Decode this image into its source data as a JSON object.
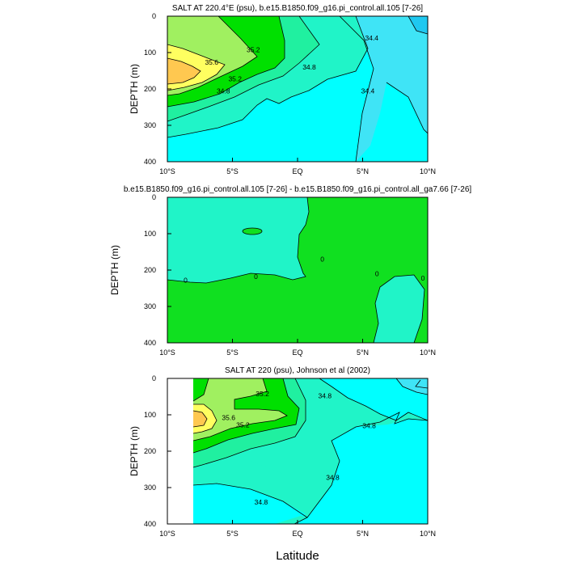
{
  "chart_data": [
    {
      "type": "heatmap",
      "title": "SALT AT 220.4°E (psu), b.e15.B1850.f09_g16.pi_control.all.105 [7-26]",
      "ylabel": "DEPTH (m)",
      "xlabel": "",
      "x_ticks": [
        -10,
        -5,
        0,
        5,
        10
      ],
      "x_tick_labels": [
        "10°S",
        "5°S",
        "EQ",
        "5°N",
        "10°N"
      ],
      "y_ticks": [
        0,
        100,
        200,
        300,
        400
      ],
      "y_tick_labels": [
        "0",
        "100",
        "200",
        "300",
        "400"
      ],
      "xlim": [
        -10,
        10
      ],
      "ylim": [
        400,
        0
      ],
      "colors": {
        "34.2": "#1fc8f0",
        "34.4": "#3fe4f6",
        "34.6": "#00ffff",
        "34.8": "#20f4c8",
        "35.0": "#20f0a0",
        "35.2": "#00e000",
        "35.4": "#a0f060",
        "35.6": "#ffff60",
        "35.8": "#ffc850"
      },
      "contour_labels": [
        {
          "text": "35.2",
          "x": -3.4,
          "y": 92
        },
        {
          "text": "35.6",
          "x": -6.6,
          "y": 127
        },
        {
          "text": "35.2",
          "x": -4.8,
          "y": 172
        },
        {
          "text": "34.8",
          "x": -5.7,
          "y": 205
        },
        {
          "text": "34.8",
          "x": 0.9,
          "y": 140
        },
        {
          "text": "34.4",
          "x": 5.7,
          "y": 60
        },
        {
          "text": "34.4",
          "x": 5.4,
          "y": 205
        }
      ]
    },
    {
      "type": "heatmap",
      "title": "b.e15.B1850.f09_g16.pi_control.all.105 [7-26] - b.e15.B1850.f09_g16.pi_control.all_ga7.66 [7-26]",
      "ylabel": "DEPTH (m)",
      "xlabel": "",
      "x_ticks": [
        -10,
        -5,
        0,
        5,
        10
      ],
      "x_tick_labels": [
        "10°S",
        "5°S",
        "EQ",
        "5°N",
        "10°N"
      ],
      "y_ticks": [
        0,
        100,
        200,
        300,
        400
      ],
      "y_tick_labels": [
        "0",
        "100",
        "200",
        "300",
        "400"
      ],
      "xlim": [
        -10,
        10
      ],
      "ylim": [
        400,
        0
      ],
      "colors": {
        "negative": "#20f4c8",
        "positive": "#10e020"
      },
      "contour_labels": [
        {
          "text": "0",
          "x": -8.6,
          "y": 228
        },
        {
          "text": "0",
          "x": -3.2,
          "y": 218
        },
        {
          "text": "0",
          "x": 1.9,
          "y": 170
        },
        {
          "text": "0",
          "x": 6.1,
          "y": 210
        },
        {
          "text": "0",
          "x": 10.0,
          "y": 222
        }
      ]
    },
    {
      "type": "heatmap",
      "title": "SALT AT 220 (psu), Johnson et al (2002)",
      "ylabel": "DEPTH (m)",
      "xlabel": "Latitude",
      "x_ticks": [
        -10,
        -5,
        0,
        5,
        10
      ],
      "x_tick_labels": [
        "10°S",
        "5°S",
        "EQ",
        "5°N",
        "10°N"
      ],
      "y_ticks": [
        0,
        100,
        200,
        300,
        400
      ],
      "y_tick_labels": [
        "0",
        "100",
        "200",
        "300",
        "400"
      ],
      "xlim": [
        -10,
        10
      ],
      "ylim": [
        400,
        0
      ],
      "data_x_range": [
        -8,
        10
      ],
      "colors": {
        "34.4": "#3fe4f6",
        "34.6": "#00ffff",
        "34.8": "#20f4c8",
        "35.0": "#20f0a0",
        "35.2": "#00e000",
        "35.4": "#a0f060",
        "35.6": "#ffff60",
        "35.8": "#ffc850"
      },
      "contour_labels": [
        {
          "text": "35.2",
          "x": -2.7,
          "y": 42
        },
        {
          "text": "35.6",
          "x": -5.3,
          "y": 108
        },
        {
          "text": "35.2",
          "x": -4.2,
          "y": 128
        },
        {
          "text": "34.8",
          "x": 2.1,
          "y": 48
        },
        {
          "text": "34.8",
          "x": 5.5,
          "y": 130
        },
        {
          "text": "34.8",
          "x": 2.7,
          "y": 272
        },
        {
          "text": "34.8",
          "x": -2.8,
          "y": 340
        }
      ]
    }
  ]
}
